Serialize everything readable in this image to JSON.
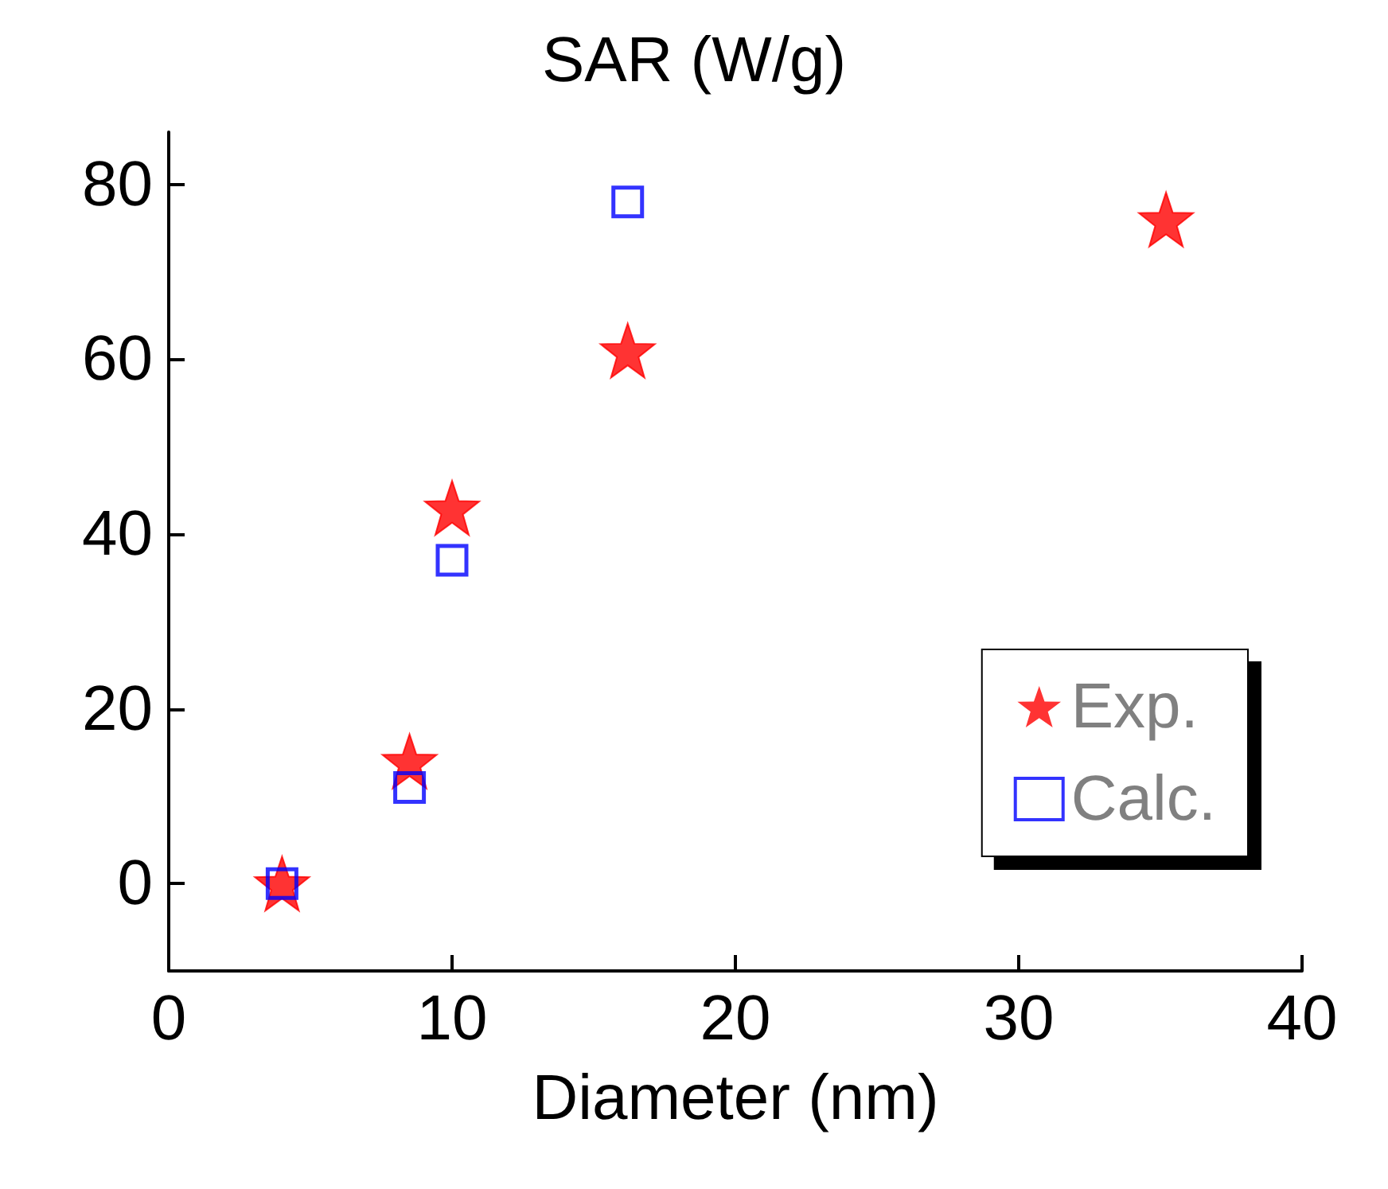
{
  "chart_data": {
    "type": "scatter",
    "title": "SAR (W/g)",
    "xlabel": "Diameter (nm)",
    "xlim": [
      0,
      40
    ],
    "xticks": [
      0,
      10,
      20,
      30,
      40
    ],
    "ylim": [
      -10,
      86
    ],
    "yticks": [
      0,
      20,
      40,
      60,
      80
    ],
    "legend": "right",
    "grid": false,
    "series": [
      {
        "name": "Exp.",
        "color": "#ff0000",
        "marker": "star",
        "x": [
          4,
          8.5,
          10,
          16.2,
          35.2
        ],
        "values": [
          0,
          14,
          43,
          61,
          76
        ]
      },
      {
        "name": "Calc.",
        "color": "#0000ff",
        "marker": "square",
        "x": [
          4,
          8.5,
          10,
          16.2
        ],
        "values": [
          0,
          11,
          37,
          78
        ]
      }
    ]
  }
}
